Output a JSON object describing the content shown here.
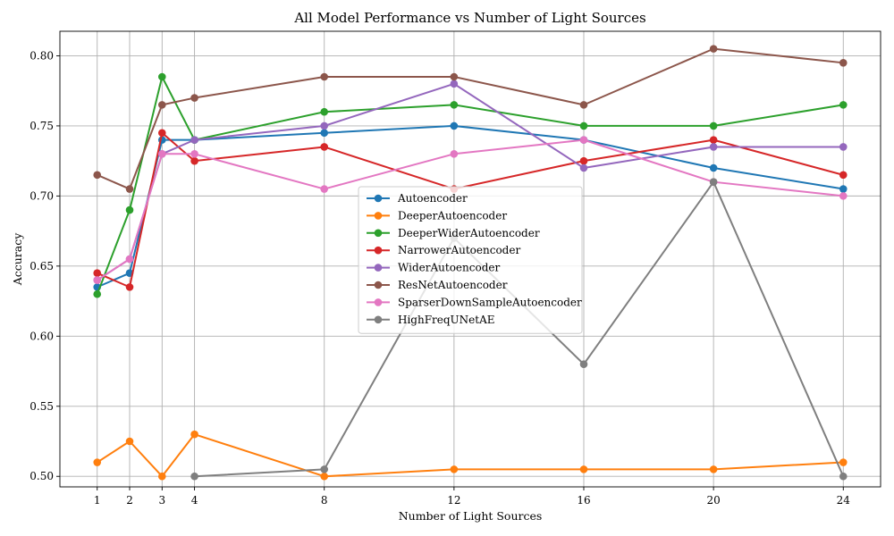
{
  "chart_data": {
    "type": "line",
    "title": "All Model Performance vs Number of Light Sources",
    "xlabel": "Number of Light Sources",
    "ylabel": "Accuracy",
    "x_ticks": [
      1,
      2,
      3,
      4,
      8,
      12,
      16,
      20,
      24
    ],
    "y_ticks": [
      "0.50",
      "0.55",
      "0.60",
      "0.65",
      "0.70",
      "0.75",
      "0.80"
    ],
    "xlim": [
      -0.15,
      25.15
    ],
    "ylim": [
      0.4925,
      0.8175
    ],
    "grid": true,
    "legend_position": "center",
    "series": [
      {
        "name": "Autoencoder",
        "color": "#1f77b4",
        "x": [
          1,
          2,
          3,
          4,
          8,
          12,
          16,
          20,
          24
        ],
        "y": [
          0.635,
          0.645,
          0.74,
          0.74,
          0.745,
          0.75,
          0.74,
          0.72,
          0.705
        ]
      },
      {
        "name": "DeeperAutoencoder",
        "color": "#ff7f0e",
        "x": [
          1,
          2,
          3,
          4,
          8,
          12,
          16,
          20,
          24
        ],
        "y": [
          0.51,
          0.525,
          0.5,
          0.53,
          0.5,
          0.505,
          0.505,
          0.505,
          0.51
        ]
      },
      {
        "name": "DeeperWiderAutoencoder",
        "color": "#2ca02c",
        "x": [
          1,
          2,
          3,
          4,
          8,
          12,
          16,
          20,
          24
        ],
        "y": [
          0.63,
          0.69,
          0.785,
          0.74,
          0.76,
          0.765,
          0.75,
          0.75,
          0.765
        ]
      },
      {
        "name": "NarrowerAutoencoder",
        "color": "#d62728",
        "x": [
          1,
          2,
          3,
          4,
          8,
          12,
          16,
          20,
          24
        ],
        "y": [
          0.645,
          0.635,
          0.745,
          0.725,
          0.735,
          0.705,
          0.725,
          0.74,
          0.715
        ]
      },
      {
        "name": "WiderAutoencoder",
        "color": "#9467bd",
        "x": [
          1,
          2,
          3,
          4,
          8,
          12,
          16,
          20,
          24
        ],
        "y": [
          0.64,
          0.655,
          0.73,
          0.74,
          0.75,
          0.78,
          0.72,
          0.735,
          0.735
        ]
      },
      {
        "name": "ResNetAutoencoder",
        "color": "#8c564b",
        "x": [
          1,
          2,
          3,
          4,
          8,
          12,
          16,
          20,
          24
        ],
        "y": [
          0.715,
          0.705,
          0.765,
          0.77,
          0.785,
          0.785,
          0.765,
          0.805,
          0.795
        ]
      },
      {
        "name": "SparserDownSampleAutoencoder",
        "color": "#e377c2",
        "x": [
          1,
          2,
          3,
          4,
          8,
          12,
          16,
          20,
          24
        ],
        "y": [
          0.64,
          0.655,
          0.73,
          0.73,
          0.705,
          0.73,
          0.74,
          0.71,
          0.7
        ]
      },
      {
        "name": "HighFreqUNetAE",
        "color": "#7f7f7f",
        "x": [
          4,
          8,
          12,
          16,
          20,
          24
        ],
        "y": [
          0.5,
          0.505,
          0.67,
          0.58,
          0.71,
          0.5
        ]
      }
    ]
  }
}
